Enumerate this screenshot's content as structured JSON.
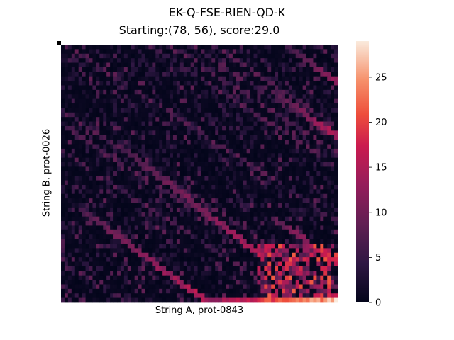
{
  "chart_data": {
    "type": "heatmap",
    "suptitle": "EK-Q-FSE-RIEN-QD-K",
    "title": "Starting:(78, 56), score:29.0",
    "xlabel": "String A, prot-0843",
    "ylabel": "String B, prot-0026",
    "n_cols": 79,
    "n_rows": 57,
    "start_cell": [
      78,
      56
    ],
    "score": 29.0,
    "value_range": [
      0,
      29
    ],
    "colormap": "rocket",
    "colorbar_ticks": [
      0,
      5,
      10,
      15,
      20,
      25
    ],
    "colorbar_tick_labels": [
      "0",
      "5",
      "10",
      "15",
      "20",
      "25"
    ],
    "value_summary": "Sparse matrix of mostly low scores (0-5) with diagonal streaks; strongest diagonal bands rise toward the lower-right, reaching the maximum 29 at the bottom-right corner",
    "bright_diagonals": [
      {
        "col_start": 40,
        "row_start": 56,
        "col_end": 78,
        "row_end": 56,
        "peak": 29
      },
      {
        "col_start": 5,
        "row_start": 36,
        "col_end": 40,
        "row_end": 56,
        "peak": 18
      },
      {
        "col_start": 16,
        "row_start": 22,
        "col_end": 56,
        "row_end": 46,
        "peak": 16
      },
      {
        "col_start": 60,
        "row_start": 38,
        "col_end": 78,
        "row_end": 48,
        "peak": 20
      },
      {
        "col_start": 60,
        "row_start": 10,
        "col_end": 78,
        "row_end": 20,
        "peak": 17
      },
      {
        "col_start": 64,
        "row_start": 0,
        "col_end": 78,
        "row_end": 8,
        "peak": 14
      }
    ]
  },
  "colors": {
    "background": "#ffffff",
    "low": "#03051a",
    "high": "#faebdd"
  }
}
